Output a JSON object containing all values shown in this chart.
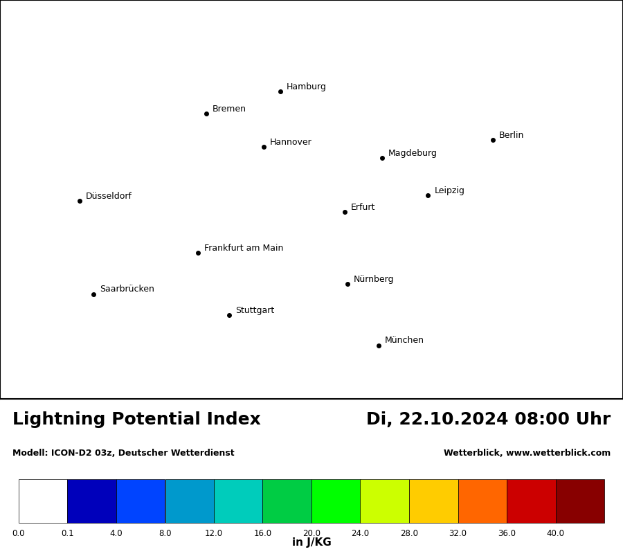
{
  "title_left": "Lightning Potential Index",
  "title_right": "Di, 22.10.2024 08:00 Uhr",
  "subtitle_left": "Modell: ICON-D2 03z, Deutscher Wetterdienst",
  "subtitle_right": "Wetterblick, www.wetterblick.com",
  "colorbar_label": "in J/KG",
  "colorbar_ticks": [
    0.0,
    0.1,
    4.0,
    8.0,
    12.0,
    16.0,
    20.0,
    24.0,
    28.0,
    32.0,
    36.0,
    40.0
  ],
  "colorbar_tick_labels": [
    "0.0",
    "0.1",
    "4.0",
    "8.0",
    "12.0",
    "16.0",
    "20.0",
    "24.0",
    "28.0",
    "32.0",
    "36.0",
    "40.0"
  ],
  "colorbar_colors": [
    "#ffffff",
    "#0000bb",
    "#0044ff",
    "#0099cc",
    "#00ccbb",
    "#00cc44",
    "#00ff00",
    "#ccff00",
    "#ffcc00",
    "#ff6600",
    "#cc0000",
    "#880000"
  ],
  "map_extent": [
    5.5,
    15.5,
    47.0,
    55.5
  ],
  "cities": [
    {
      "name": "Hamburg",
      "lon": 10.0,
      "lat": 53.55
    },
    {
      "name": "Bremen",
      "lon": 8.81,
      "lat": 53.08
    },
    {
      "name": "Hannover",
      "lon": 9.73,
      "lat": 52.37
    },
    {
      "name": "Berlin",
      "lon": 13.41,
      "lat": 52.52
    },
    {
      "name": "Magdeburg",
      "lon": 11.63,
      "lat": 52.13
    },
    {
      "name": "Düsseldorf",
      "lon": 6.78,
      "lat": 51.22
    },
    {
      "name": "Leipzig",
      "lon": 12.37,
      "lat": 51.34
    },
    {
      "name": "Erfurt",
      "lon": 11.03,
      "lat": 50.98
    },
    {
      "name": "Frankfurt am Main",
      "lon": 8.68,
      "lat": 50.11
    },
    {
      "name": "Saarbrücken",
      "lon": 7.0,
      "lat": 49.23
    },
    {
      "name": "Nürnberg",
      "lon": 11.08,
      "lat": 49.45
    },
    {
      "name": "Stuttgart",
      "lon": 9.18,
      "lat": 48.78
    },
    {
      "name": "München",
      "lon": 11.58,
      "lat": 48.14
    }
  ],
  "background_color": "#ffffff",
  "map_background": "#ffffff",
  "border_color": "#000000",
  "border_linewidth": 0.8,
  "city_dot_size": 4,
  "city_fontsize": 9,
  "title_fontsize": 18,
  "subtitle_fontsize": 9
}
